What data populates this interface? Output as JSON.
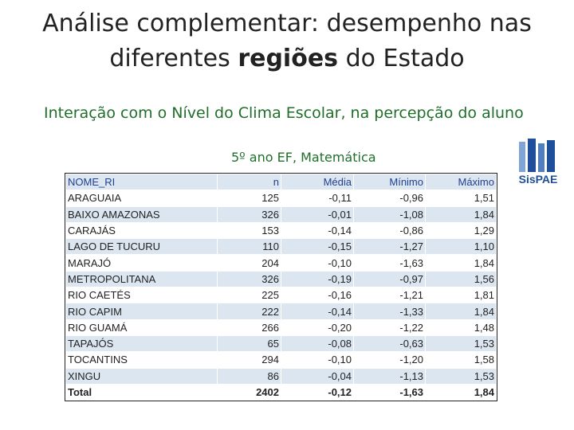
{
  "header": {
    "title": [
      "Análise complementar: desempenho nas",
      "diferentes",
      "regiões",
      "do Estado"
    ],
    "subtitle": "Interação com o Nível do Clima Escolar, na percepção do aluno",
    "caption": "5º ano EF, Matemática"
  },
  "logo": {
    "label": "SisPAE"
  },
  "table": {
    "columns": [
      "NOME_RI",
      "n",
      "Média",
      "Mínimo",
      "Máximo"
    ],
    "rows": [
      [
        "ARAGUAIA",
        "125",
        "-0,11",
        "-0,96",
        "1,51"
      ],
      [
        "BAIXO AMAZONAS",
        "326",
        "-0,01",
        "-1,08",
        "1,84"
      ],
      [
        "CARAJÁS",
        "153",
        "-0,14",
        "-0,86",
        "1,29"
      ],
      [
        "LAGO DE TUCURU",
        "110",
        "-0,15",
        "-1,27",
        "1,10"
      ],
      [
        "MARAJÓ",
        "204",
        "-0,10",
        "-1,63",
        "1,84"
      ],
      [
        "METROPOLITANA",
        "326",
        "-0,19",
        "-0,97",
        "1,56"
      ],
      [
        "RIO CAETÉS",
        "225",
        "-0,16",
        "-1,21",
        "1,81"
      ],
      [
        "RIO CAPIM",
        "222",
        "-0,14",
        "-1,33",
        "1,84"
      ],
      [
        "RIO GUAMÁ",
        "266",
        "-0,20",
        "-1,22",
        "1,48"
      ],
      [
        "TAPAJÓS",
        "65",
        "-0,08",
        "-0,63",
        "1,53"
      ],
      [
        "TOCANTINS",
        "294",
        "-0,10",
        "-1,20",
        "1,58"
      ],
      [
        "XINGU",
        "86",
        "-0,04",
        "-1,13",
        "1,53"
      ]
    ],
    "total": [
      "Total",
      "2402",
      "-0,12",
      "-1,63",
      "1,84"
    ]
  }
}
